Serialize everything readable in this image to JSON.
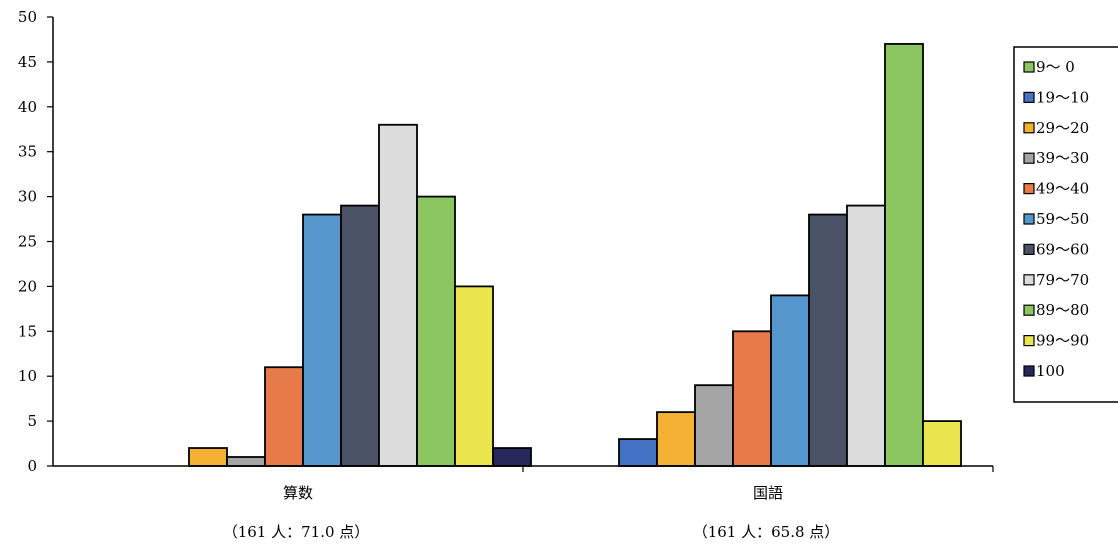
{
  "chart_data": {
    "type": "bar",
    "title": "",
    "xlabel": "",
    "ylabel": "",
    "ylim": [
      0,
      50
    ],
    "yticks": [
      0,
      5,
      10,
      15,
      20,
      25,
      30,
      35,
      40,
      45,
      50
    ],
    "grid": false,
    "legend_position": "right",
    "categories": [
      "算数",
      "国語"
    ],
    "category_subtitles": [
      "（161 人：71.0 点）",
      "（161 人：65.8 点）"
    ],
    "series": [
      {
        "name": "  9～ 0",
        "color": "#8cc660",
        "values": [
          0,
          0
        ]
      },
      {
        "name": "19～10",
        "color": "#4472c4",
        "values": [
          0,
          3
        ]
      },
      {
        "name": "29～20",
        "color": "#f4b133",
        "values": [
          2,
          6
        ]
      },
      {
        "name": "39～30",
        "color": "#a5a5a5",
        "values": [
          1,
          9
        ]
      },
      {
        "name": "49～40",
        "color": "#e67a48",
        "values": [
          11,
          15
        ]
      },
      {
        "name": "59～50",
        "color": "#5596cc",
        "values": [
          28,
          19
        ]
      },
      {
        "name": "69～60",
        "color": "#4a5365",
        "values": [
          29,
          28
        ]
      },
      {
        "name": "79～70",
        "color": "#dcdcdc",
        "values": [
          38,
          29
        ]
      },
      {
        "name": "89～80",
        "color": "#8cc660",
        "values": [
          30,
          47
        ]
      },
      {
        "name": "99～90",
        "color": "#ebe54e",
        "values": [
          20,
          5
        ]
      },
      {
        "name": "100",
        "color": "#27275b",
        "values": [
          2,
          0
        ]
      }
    ]
  }
}
